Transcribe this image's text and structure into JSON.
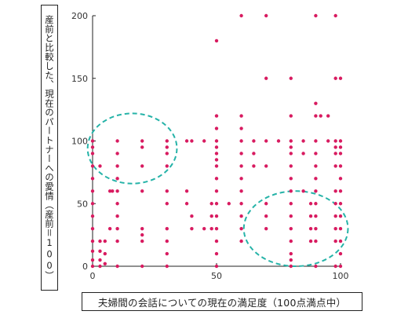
{
  "chart_data": {
    "type": "scatter",
    "title": "",
    "ylabel": "産前と比較した、現在のパートナーへの愛情（産前＝100）",
    "xlabel": "夫婦間の会話についての現在の満足度（100点満点中）",
    "xlim": [
      0,
      100
    ],
    "ylim": [
      0,
      200
    ],
    "xticks": [
      0,
      50,
      100
    ],
    "yticks": [
      0,
      50,
      100,
      150,
      200
    ],
    "grid": false,
    "colors": {
      "points": "#d81b60",
      "ellipses": "#26b3a8",
      "axis": "#222222"
    },
    "series": [
      {
        "points": [
          [
            0,
            0
          ],
          [
            0,
            5
          ],
          [
            0,
            12
          ],
          [
            0,
            20
          ],
          [
            0,
            30
          ],
          [
            0,
            40
          ],
          [
            0,
            50
          ],
          [
            0,
            60
          ],
          [
            0,
            70
          ],
          [
            0,
            80
          ],
          [
            0,
            90
          ],
          [
            0,
            95
          ],
          [
            0,
            100
          ],
          [
            3,
            0
          ],
          [
            3,
            5
          ],
          [
            3,
            12
          ],
          [
            3,
            20
          ],
          [
            3,
            80
          ],
          [
            5,
            2
          ],
          [
            5,
            10
          ],
          [
            5,
            20
          ],
          [
            7,
            30
          ],
          [
            7,
            60
          ],
          [
            8,
            60
          ],
          [
            10,
            0
          ],
          [
            10,
            20
          ],
          [
            10,
            30
          ],
          [
            10,
            40
          ],
          [
            10,
            50
          ],
          [
            10,
            60
          ],
          [
            10,
            70
          ],
          [
            10,
            80
          ],
          [
            10,
            90
          ],
          [
            10,
            100
          ],
          [
            20,
            0
          ],
          [
            20,
            20
          ],
          [
            20,
            25
          ],
          [
            20,
            30
          ],
          [
            20,
            60
          ],
          [
            20,
            80
          ],
          [
            20,
            95
          ],
          [
            20,
            100
          ],
          [
            30,
            0
          ],
          [
            30,
            10
          ],
          [
            30,
            20
          ],
          [
            30,
            30
          ],
          [
            30,
            50
          ],
          [
            30,
            60
          ],
          [
            30,
            80
          ],
          [
            30,
            90
          ],
          [
            30,
            95
          ],
          [
            30,
            100
          ],
          [
            38,
            50
          ],
          [
            38,
            60
          ],
          [
            38,
            100
          ],
          [
            40,
            30
          ],
          [
            40,
            40
          ],
          [
            40,
            100
          ],
          [
            45,
            30
          ],
          [
            45,
            100
          ],
          [
            48,
            30
          ],
          [
            48,
            40
          ],
          [
            48,
            50
          ],
          [
            50,
            0
          ],
          [
            50,
            10
          ],
          [
            50,
            20
          ],
          [
            50,
            30
          ],
          [
            50,
            40
          ],
          [
            50,
            50
          ],
          [
            50,
            60
          ],
          [
            50,
            70
          ],
          [
            50,
            80
          ],
          [
            50,
            85
          ],
          [
            50,
            90
          ],
          [
            50,
            95
          ],
          [
            50,
            100
          ],
          [
            50,
            110
          ],
          [
            50,
            120
          ],
          [
            50,
            180
          ],
          [
            55,
            50
          ],
          [
            60,
            20
          ],
          [
            60,
            30
          ],
          [
            60,
            40
          ],
          [
            60,
            50
          ],
          [
            60,
            60
          ],
          [
            60,
            70
          ],
          [
            60,
            80
          ],
          [
            60,
            90
          ],
          [
            60,
            100
          ],
          [
            60,
            110
          ],
          [
            60,
            120
          ],
          [
            60,
            200
          ],
          [
            65,
            80
          ],
          [
            65,
            90
          ],
          [
            65,
            100
          ],
          [
            70,
            30
          ],
          [
            70,
            40
          ],
          [
            70,
            50
          ],
          [
            70,
            80
          ],
          [
            70,
            100
          ],
          [
            70,
            150
          ],
          [
            70,
            200
          ],
          [
            75,
            100
          ],
          [
            80,
            0
          ],
          [
            80,
            5
          ],
          [
            80,
            10
          ],
          [
            80,
            20
          ],
          [
            80,
            30
          ],
          [
            80,
            40
          ],
          [
            80,
            50
          ],
          [
            80,
            60
          ],
          [
            80,
            70
          ],
          [
            80,
            80
          ],
          [
            80,
            90
          ],
          [
            80,
            95
          ],
          [
            80,
            100
          ],
          [
            80,
            120
          ],
          [
            80,
            150
          ],
          [
            85,
            60
          ],
          [
            85,
            90
          ],
          [
            85,
            100
          ],
          [
            88,
            20
          ],
          [
            88,
            30
          ],
          [
            88,
            40
          ],
          [
            88,
            50
          ],
          [
            90,
            0
          ],
          [
            90,
            20
          ],
          [
            90,
            30
          ],
          [
            90,
            40
          ],
          [
            90,
            50
          ],
          [
            90,
            60
          ],
          [
            90,
            70
          ],
          [
            90,
            80
          ],
          [
            90,
            90
          ],
          [
            90,
            100
          ],
          [
            90,
            120
          ],
          [
            90,
            130
          ],
          [
            90,
            200
          ],
          [
            92,
            120
          ],
          [
            95,
            100
          ],
          [
            95,
            120
          ],
          [
            98,
            0
          ],
          [
            98,
            20
          ],
          [
            98,
            30
          ],
          [
            98,
            40
          ],
          [
            98,
            50
          ],
          [
            98,
            60
          ],
          [
            98,
            80
          ],
          [
            98,
            90
          ],
          [
            98,
            95
          ],
          [
            98,
            100
          ],
          [
            98,
            150
          ],
          [
            98,
            200
          ],
          [
            100,
            0
          ],
          [
            100,
            10
          ],
          [
            100,
            20
          ],
          [
            100,
            30
          ],
          [
            100,
            40
          ],
          [
            100,
            50
          ],
          [
            100,
            60
          ],
          [
            100,
            70
          ],
          [
            100,
            80
          ],
          [
            100,
            90
          ],
          [
            100,
            95
          ],
          [
            100,
            100
          ],
          [
            100,
            150
          ]
        ]
      }
    ],
    "annotations": [
      {
        "shape": "ellipse",
        "style": "dashed",
        "cx": 16,
        "cy": 94,
        "rx": 18,
        "ry": 28
      },
      {
        "shape": "ellipse",
        "style": "dashed",
        "cx": 82,
        "cy": 30,
        "rx": 21,
        "ry": 30
      }
    ]
  }
}
